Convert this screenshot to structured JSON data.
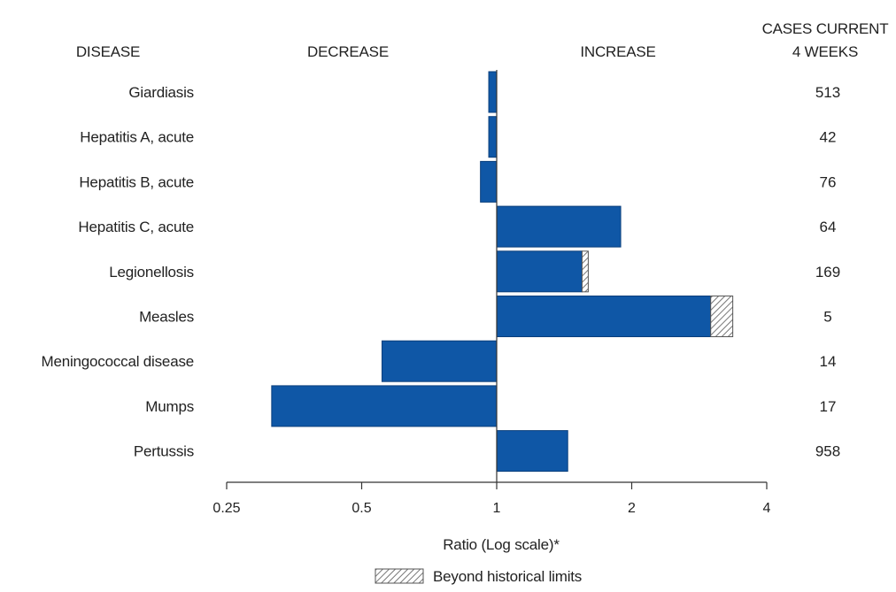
{
  "headers": {
    "disease": "DISEASE",
    "decrease": "DECREASE",
    "increase": "INCREASE",
    "cases_line1": "CASES CURRENT",
    "cases_line2": "4 WEEKS"
  },
  "chart_data": {
    "type": "bar",
    "orientation": "horizontal",
    "x_scale": "log2",
    "xlim": [
      0.25,
      4
    ],
    "xticks": [
      0.25,
      0.5,
      1,
      2,
      4
    ],
    "xtick_labels": [
      "0.25",
      "0.5",
      "1",
      "2",
      "4"
    ],
    "xlabel": "Ratio (Log scale)*",
    "legend": {
      "label": "Beyond historical limits",
      "placement": "bottom-center"
    },
    "grid": false,
    "colors": {
      "bar": "#0f57a6",
      "hatch": "#777777"
    },
    "rows": [
      {
        "name": "Giardiasis",
        "ratio": 0.96,
        "beyond_limit": null,
        "cases": "513"
      },
      {
        "name": "Hepatitis A, acute",
        "ratio": 0.96,
        "beyond_limit": null,
        "cases": "42"
      },
      {
        "name": "Hepatitis B, acute",
        "ratio": 0.92,
        "beyond_limit": null,
        "cases": "76"
      },
      {
        "name": "Hepatitis C, acute",
        "ratio": 1.89,
        "beyond_limit": null,
        "cases": "64"
      },
      {
        "name": "Legionellosis",
        "ratio": 1.6,
        "beyond_limit": 1.55,
        "cases": "169"
      },
      {
        "name": "Measles",
        "ratio": 3.36,
        "beyond_limit": 3.0,
        "cases": "5"
      },
      {
        "name": "Meningococcal disease",
        "ratio": 0.555,
        "beyond_limit": null,
        "cases": "14"
      },
      {
        "name": "Mumps",
        "ratio": 0.315,
        "beyond_limit": null,
        "cases": "17"
      },
      {
        "name": "Pertussis",
        "ratio": 1.44,
        "beyond_limit": null,
        "cases": "958"
      }
    ]
  }
}
